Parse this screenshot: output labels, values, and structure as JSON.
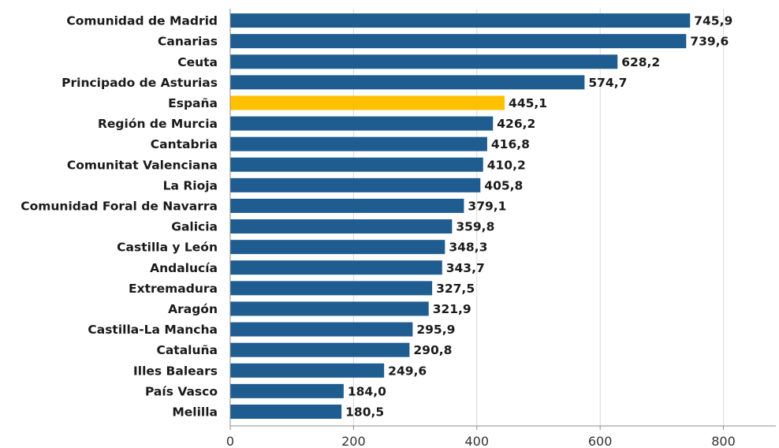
{
  "chart_data": {
    "type": "bar",
    "orientation": "horizontal",
    "categories": [
      "Comunidad de Madrid",
      "Canarias",
      "Ceuta",
      "Principado de Asturias",
      "España",
      "Región de Murcia",
      "Cantabria",
      "Comunitat Valenciana",
      "La Rioja",
      "Comunidad Foral de Navarra",
      "Galicia",
      "Castilla y León",
      "Andalucía",
      "Extremadura",
      "Aragón",
      "Castilla-La Mancha",
      "Cataluña",
      "Illes Balears",
      "País Vasco",
      "Melilla"
    ],
    "values": [
      745.9,
      739.6,
      628.2,
      574.7,
      445.1,
      426.2,
      416.8,
      410.2,
      405.8,
      379.1,
      359.8,
      348.3,
      343.7,
      327.5,
      321.9,
      295.9,
      290.8,
      249.6,
      184.0,
      180.5
    ],
    "value_labels": [
      "745,9",
      "739,6",
      "628,2",
      "574,7",
      "445,1",
      "426,2",
      "416,8",
      "410,2",
      "405,8",
      "379,1",
      "359,8",
      "348,3",
      "343,7",
      "327,5",
      "321,9",
      "295,9",
      "290,8",
      "249,6",
      "184,0",
      "180,5"
    ],
    "highlight": "España",
    "colors": {
      "bar": "#1f5c8f",
      "highlight": "#ffc000"
    },
    "xlim": [
      0,
      885
    ],
    "xticks": [
      0,
      200,
      400,
      600,
      800
    ],
    "xtick_labels": [
      "0",
      "200",
      "400",
      "600",
      "800"
    ],
    "grid": true,
    "title": "",
    "xlabel": "",
    "ylabel": ""
  }
}
